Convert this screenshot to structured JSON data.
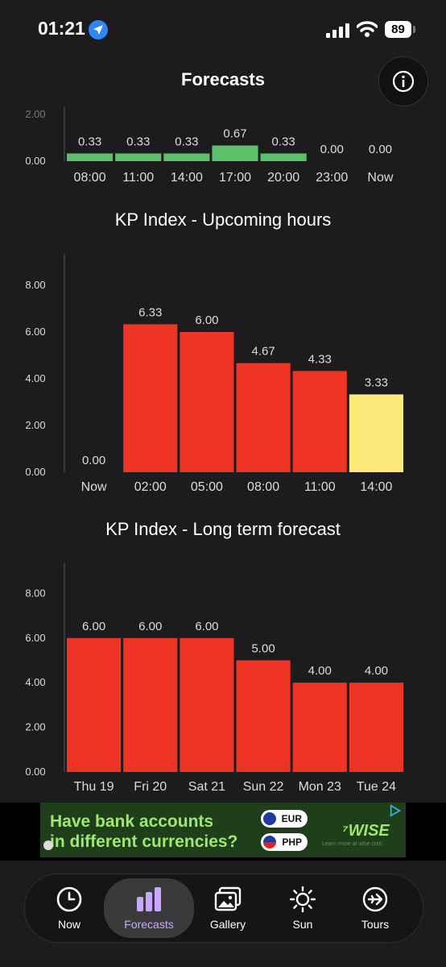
{
  "status_bar": {
    "time": "01:21",
    "battery": "89"
  },
  "header": {
    "title": "Forecasts"
  },
  "colors": {
    "green": "#5cbf6a",
    "red": "#ee3525",
    "yellow": "#fde87a",
    "accent": "#c8a8ff"
  },
  "chart_data": [
    {
      "type": "bar",
      "title": "",
      "categories": [
        "08:00",
        "11:00",
        "14:00",
        "17:00",
        "20:00",
        "23:00",
        "Now"
      ],
      "values": [
        0.33,
        0.33,
        0.33,
        0.67,
        0.33,
        0.0,
        0.0
      ],
      "value_labels": [
        "0.33",
        "0.33",
        "0.33",
        "0.67",
        "0.33",
        "0.00",
        "0.00"
      ],
      "yticks": [
        "0.00",
        "2.00"
      ],
      "ylim": [
        0,
        8
      ],
      "bar_colors": [
        "green",
        "green",
        "green",
        "green",
        "green",
        "green",
        "green"
      ]
    },
    {
      "type": "bar",
      "title": "KP Index - Upcoming hours",
      "categories": [
        "Now",
        "02:00",
        "05:00",
        "08:00",
        "11:00",
        "14:00"
      ],
      "values": [
        0.0,
        6.33,
        6.0,
        4.67,
        4.33,
        3.33
      ],
      "value_labels": [
        "0.00",
        "6.33",
        "6.00",
        "4.67",
        "4.33",
        "3.33"
      ],
      "yticks": [
        "0.00",
        "2.00",
        "4.00",
        "6.00",
        "8.00"
      ],
      "ylim": [
        0,
        9.3
      ],
      "bar_colors": [
        "red",
        "red",
        "red",
        "red",
        "red",
        "yellow"
      ]
    },
    {
      "type": "bar",
      "title": "KP Index - Long term forecast",
      "categories": [
        "Thu 19",
        "Fri 20",
        "Sat 21",
        "Sun 22",
        "Mon 23",
        "Tue 24"
      ],
      "values": [
        6.0,
        6.0,
        6.0,
        5.0,
        4.0,
        4.0
      ],
      "value_labels": [
        "6.00",
        "6.00",
        "6.00",
        "5.00",
        "4.00",
        "4.00"
      ],
      "yticks": [
        "0.00",
        "2.00",
        "4.00",
        "6.00",
        "8.00"
      ],
      "ylim": [
        0,
        9.3
      ],
      "bar_colors": [
        "red",
        "red",
        "red",
        "red",
        "red",
        "red"
      ]
    }
  ],
  "ad": {
    "line1": "Have bank accounts",
    "line2": "in different currencies?",
    "currency1": "EUR",
    "currency2": "PHP",
    "brand": "WISE",
    "small": "Learn more at wise.com"
  },
  "tabs": [
    {
      "label": "Now",
      "icon": "clock-icon"
    },
    {
      "label": "Forecasts",
      "icon": "bar-chart-icon"
    },
    {
      "label": "Gallery",
      "icon": "gallery-icon"
    },
    {
      "label": "Sun",
      "icon": "sun-icon"
    },
    {
      "label": "Tours",
      "icon": "plane-icon"
    }
  ]
}
